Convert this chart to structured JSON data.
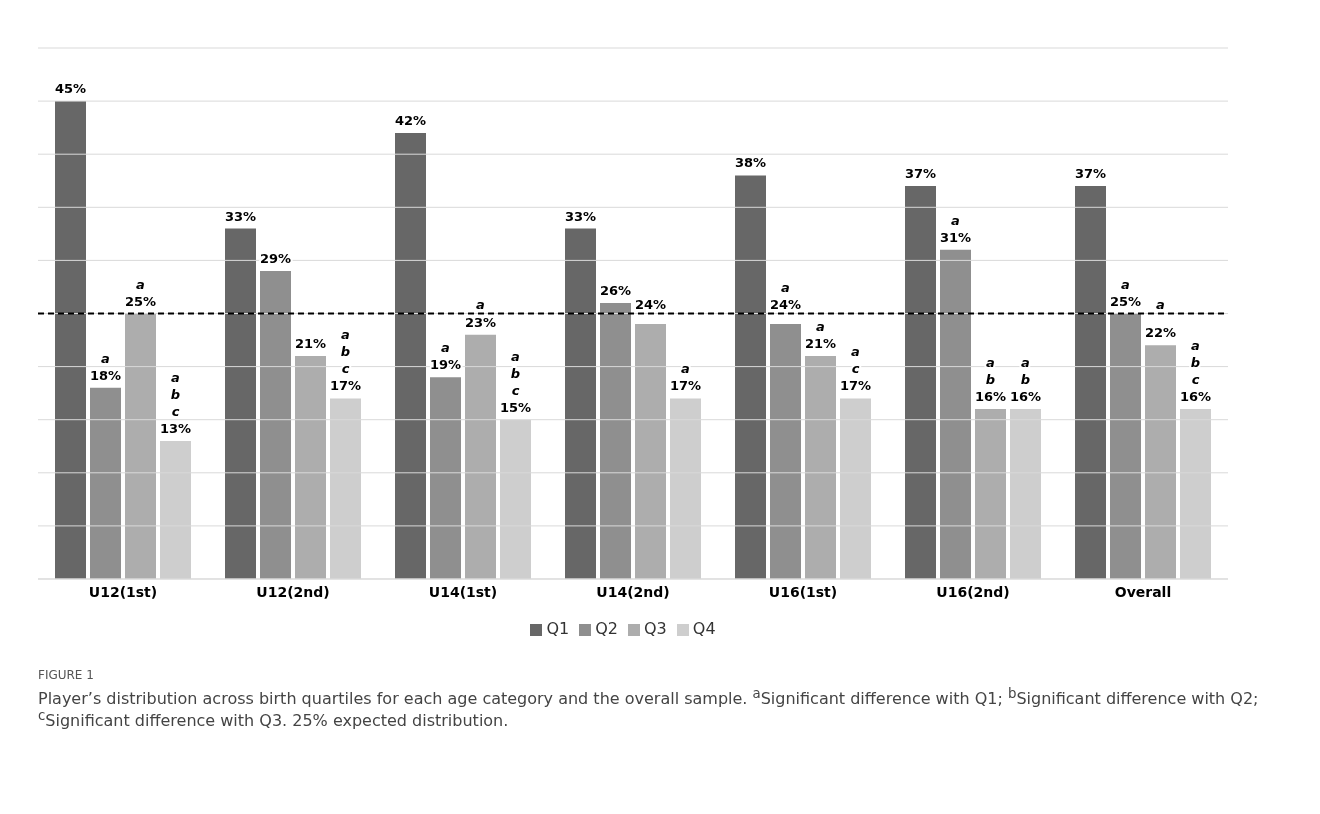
{
  "chart_data": {
    "type": "bar",
    "categories": [
      "U12(1st)",
      "U12(2nd)",
      "U14(1st)",
      "U14(2nd)",
      "U16(1st)",
      "U16(2nd)",
      "Overall"
    ],
    "series": [
      {
        "name": "Q1",
        "color": "#676767",
        "values": [
          45,
          33,
          42,
          33,
          38,
          37,
          37
        ],
        "value_labels": [
          "45%",
          "33%",
          "42%",
          "33%",
          "38%",
          "37%",
          "37%"
        ]
      },
      {
        "name": "Q2",
        "color": "#8f8f8f",
        "values": [
          18,
          29,
          19,
          26,
          24,
          31,
          25
        ],
        "value_labels": [
          "a\n18%",
          "29%",
          "a\n19%",
          "26%",
          "a\n24%",
          "a\n31%",
          "a\n25%"
        ]
      },
      {
        "name": "Q3",
        "color": "#adadad",
        "values": [
          25,
          21,
          23,
          24,
          21,
          16,
          22
        ],
        "value_labels": [
          "a\n25%",
          "21%",
          "a\n23%",
          "24%",
          "a\n21%",
          "a\nb\n16%",
          "a\n22%"
        ]
      },
      {
        "name": "Q4",
        "color": "#cecece",
        "values": [
          13,
          17,
          15,
          17,
          17,
          16,
          16
        ],
        "value_labels": [
          "a\nb\nc\n13%",
          "a\nb\nc\n17%",
          "a\nb\nc\n15%",
          "a\n17%",
          "a\nc\n17%",
          "a\nb\n16%",
          "a\nb\nc\n16%"
        ]
      }
    ],
    "ylim": [
      0,
      50
    ],
    "yticks": [
      {
        "value": 0,
        "label": null
      },
      {
        "value": 5,
        "label": null
      },
      {
        "value": 10,
        "label": null
      },
      {
        "value": 15,
        "label": null
      },
      {
        "value": 20,
        "label": null
      },
      {
        "value": 25,
        "label": null
      },
      {
        "value": 30,
        "label": null
      },
      {
        "value": 35,
        "label": null
      },
      {
        "value": 40,
        "label": null
      },
      {
        "value": 45,
        "label": null
      },
      {
        "value": 50,
        "label": null
      }
    ],
    "grid": "y",
    "tick_labels": "x",
    "legend": "bottom",
    "ref_lines": [
      {
        "axis": "y",
        "value": 25,
        "color": "#000000",
        "line_style": "dashed"
      }
    ],
    "annotations": [
      "FIGURE 1",
      "Player’s distribution across birth quartiles for each age category and the overall sample. $^{a}$Significant difference with Q1; $^{b}$Significant difference with Q2; $^{c}$Significant difference with Q3. 25% expected distribution."
    ]
  }
}
